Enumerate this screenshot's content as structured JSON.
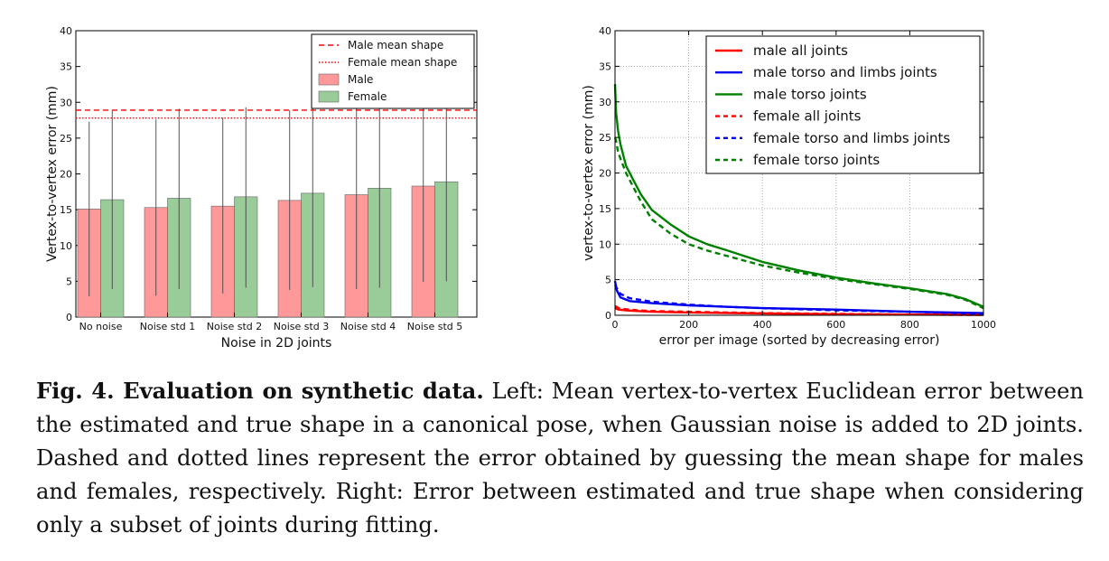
{
  "chart_data": [
    {
      "type": "bar",
      "xlabel": "Noise in 2D joints",
      "ylabel": "Vertex-to-vertex error (mm)",
      "ylim": [
        0,
        40
      ],
      "yticks": [
        "0",
        "5",
        "10",
        "15",
        "20",
        "25",
        "30",
        "35",
        "40"
      ],
      "categories": [
        "No noise",
        "Noise std 1",
        "Noise std 2",
        "Noise std 3",
        "Noise std 4",
        "Noise std 5"
      ],
      "series": [
        {
          "name": "Male",
          "color": "#ff9999",
          "values": [
            15.1,
            15.3,
            15.5,
            16.3,
            17.1,
            18.3
          ],
          "err_low": [
            2.9,
            3.0,
            3.3,
            3.8,
            3.9,
            4.9
          ],
          "err_high": [
            27.3,
            27.6,
            27.8,
            28.9,
            29.1,
            30.0
          ]
        },
        {
          "name": "Female",
          "color": "#99cc99",
          "values": [
            16.4,
            16.6,
            16.8,
            17.3,
            18.0,
            18.9
          ],
          "err_low": [
            3.9,
            3.9,
            4.1,
            4.2,
            4.1,
            5.0
          ],
          "err_high": [
            28.9,
            29.1,
            29.3,
            29.3,
            29.9,
            29.8
          ]
        }
      ],
      "reference_lines": [
        {
          "name": "Male mean shape",
          "value": 28.9,
          "style": "dashed",
          "color": "#ff0000"
        },
        {
          "name": "Female mean shape",
          "value": 27.8,
          "style": "dotted",
          "color": "#ff0000"
        }
      ],
      "legend_placement": "top-right",
      "grid": false
    },
    {
      "type": "line",
      "xlabel": "error per image (sorted by decreasing error)",
      "ylabel": "vertex-to-vertex error (mm)",
      "xlim": [
        0,
        1000
      ],
      "ylim": [
        0,
        40
      ],
      "xticks": [
        "0",
        "200",
        "400",
        "600",
        "800",
        "1000"
      ],
      "yticks": [
        "0",
        "5",
        "10",
        "15",
        "20",
        "25",
        "30",
        "35",
        "40"
      ],
      "grid": true,
      "legend_placement": "top-right",
      "series": [
        {
          "name": "male all joints",
          "color": "#ff0000",
          "style": "solid",
          "x": [
            0,
            10,
            30,
            60,
            100,
            200,
            400,
            600,
            800,
            1000
          ],
          "y": [
            1.0,
            0.8,
            0.7,
            0.6,
            0.5,
            0.4,
            0.25,
            0.15,
            0.1,
            0.05
          ]
        },
        {
          "name": "male torso and limbs joints",
          "color": "#0000ee",
          "style": "solid",
          "x": [
            0,
            5,
            15,
            40,
            100,
            200,
            300,
            400,
            600,
            800,
            1000
          ],
          "y": [
            4.8,
            3.5,
            2.5,
            2.0,
            1.7,
            1.4,
            1.2,
            1.0,
            0.8,
            0.5,
            0.3
          ]
        },
        {
          "name": "male torso joints",
          "color": "#008000",
          "style": "solid",
          "x": [
            0,
            3,
            8,
            15,
            30,
            50,
            70,
            100,
            150,
            200,
            250,
            300,
            400,
            500,
            600,
            700,
            800,
            900,
            950,
            1000
          ],
          "y": [
            32.5,
            28.5,
            26,
            24,
            21,
            19,
            17,
            14.8,
            12.8,
            11.1,
            10,
            9.2,
            7.5,
            6.3,
            5.3,
            4.5,
            3.8,
            3,
            2.3,
            1.2
          ]
        },
        {
          "name": "female all joints",
          "color": "#ff0000",
          "style": "dashed",
          "x": [
            0,
            10,
            30,
            60,
            100,
            200,
            400,
            600,
            800,
            1000
          ],
          "y": [
            1.3,
            1.0,
            0.85,
            0.7,
            0.6,
            0.5,
            0.3,
            0.2,
            0.1,
            0.05
          ]
        },
        {
          "name": "female torso and limbs joints",
          "color": "#0000ee",
          "style": "dashed",
          "x": [
            0,
            5,
            15,
            40,
            100,
            200,
            300,
            400,
            600,
            800,
            1000
          ],
          "y": [
            4.3,
            3.8,
            3.0,
            2.4,
            1.9,
            1.5,
            1.2,
            1.0,
            0.7,
            0.5,
            0.2
          ]
        },
        {
          "name": "female torso joints",
          "color": "#008000",
          "style": "dashed",
          "x": [
            0,
            3,
            8,
            15,
            30,
            50,
            70,
            100,
            150,
            200,
            250,
            300,
            400,
            500,
            600,
            700,
            800,
            900,
            950,
            1000
          ],
          "y": [
            25,
            24.5,
            23,
            22,
            20,
            18,
            16,
            13.5,
            11.5,
            10,
            9.1,
            8.4,
            7,
            6,
            5.1,
            4.4,
            3.7,
            2.9,
            2.2,
            1.0
          ]
        }
      ]
    }
  ],
  "caption": {
    "label": "Fig. 4. Evaluation on synthetic data.",
    "text": " Left: Mean vertex-to-vertex Euclidean error between the estimated and true shape in a canonical pose, when Gaussian noise is added to 2D joints. Dashed and dotted lines represent the error obtained by guessing the mean shape for males and females, respectively. Right: Error between estimated and true shape when considering only a subset of joints during fitting."
  }
}
